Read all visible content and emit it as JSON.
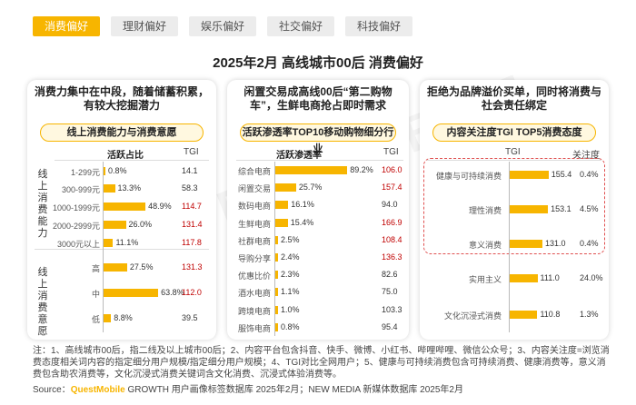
{
  "tabs": [
    {
      "label": "消费偏好",
      "active": true
    },
    {
      "label": "理财偏好",
      "active": false
    },
    {
      "label": "娱乐偏好",
      "active": false
    },
    {
      "label": "社交偏好",
      "active": false
    },
    {
      "label": "科技偏好",
      "active": false
    }
  ],
  "title": "2025年2月 高线城市00后 消费偏好",
  "watermark": "QUESTMOBILE",
  "colors": {
    "accent": "#f7b500",
    "highlight": "#c00000"
  },
  "panel1": {
    "headline": "消费力集中在中段，随着储蓄积累，有较大挖掘潜力",
    "subtitle": "线上消费能力与消费意愿",
    "col_value": "活跃占比",
    "col_tgi": "TGI",
    "group1_label": "线上消费能力",
    "group2_label": "线上消费意愿"
  },
  "panel2": {
    "headline": "闲置交易成高线00后“第二购物车”，生鲜电商抢占即时需求",
    "subtitle": "活跃渗透率TOP10移动购物细分行业",
    "col_value": "活跃渗透率",
    "col_tgi": "TGI"
  },
  "panel3": {
    "headline": "拒绝为品牌溢价买单，同时将消费与社会责任绑定",
    "subtitle": "内容关注度TGI TOP5消费态度",
    "col_tgi": "TGI",
    "col_attention": "关注度"
  },
  "chart_data": [
    {
      "type": "bar",
      "title": "线上消费能力与消费意愿",
      "groups": [
        {
          "name": "线上消费能力",
          "categories": [
            "1-299元",
            "300-999元",
            "1000-1999元",
            "2000-2999元",
            "3000元以上"
          ],
          "values": [
            0.8,
            13.3,
            48.9,
            26.0,
            11.1
          ],
          "value_labels": [
            "0.8%",
            "13.3%",
            "48.9%",
            "26.0%",
            "11.1%"
          ],
          "tgi": [
            14.1,
            58.3,
            114.7,
            131.4,
            117.8
          ],
          "tgi_labels": [
            "14.1",
            "58.3",
            "114.7",
            "131.4",
            "117.8"
          ],
          "tgi_highlight": [
            false,
            false,
            true,
            true,
            true
          ]
        },
        {
          "name": "线上消费意愿",
          "categories": [
            "高",
            "中",
            "低"
          ],
          "values": [
            27.5,
            63.8,
            8.8
          ],
          "value_labels": [
            "27.5%",
            "63.8%",
            "8.8%"
          ],
          "tgi": [
            131.3,
            112.0,
            39.5
          ],
          "tgi_labels": [
            "131.3",
            "112.0",
            "39.5"
          ],
          "tgi_highlight": [
            true,
            true,
            false
          ]
        }
      ],
      "value_unit": "%"
    },
    {
      "type": "bar",
      "title": "活跃渗透率TOP10移动购物细分行业",
      "categories": [
        "综合电商",
        "闲置交易",
        "数码电商",
        "生鲜电商",
        "社群电商",
        "导购分享",
        "优惠比价",
        "酒水电商",
        "跨境电商",
        "服饰电商"
      ],
      "values": [
        89.2,
        25.7,
        16.1,
        15.4,
        2.5,
        2.4,
        2.3,
        1.1,
        1.0,
        0.8
      ],
      "value_labels": [
        "89.2%",
        "25.7%",
        "16.1%",
        "15.4%",
        "2.5%",
        "2.4%",
        "2.3%",
        "1.1%",
        "1.0%",
        "0.8%"
      ],
      "tgi": [
        106.0,
        157.4,
        94.0,
        166.9,
        108.4,
        136.3,
        82.6,
        75.0,
        103.3,
        95.4
      ],
      "tgi_labels": [
        "106.0",
        "157.4",
        "94.0",
        "166.9",
        "108.4",
        "136.3",
        "82.6",
        "75.0",
        "103.3",
        "95.4"
      ],
      "tgi_highlight": [
        true,
        true,
        false,
        true,
        true,
        true,
        false,
        false,
        false,
        false
      ],
      "value_unit": "%"
    },
    {
      "type": "bar",
      "title": "内容关注度TGI TOP5消费态度",
      "categories": [
        "健康与可持续消费",
        "理性消费",
        "意义消费",
        "实用主义",
        "文化沉浸式消费"
      ],
      "tgi": [
        155.4,
        153.1,
        131.0,
        111.0,
        110.8
      ],
      "tgi_labels": [
        "155.4",
        "153.1",
        "131.0",
        "111.0",
        "110.8"
      ],
      "attention": [
        0.4,
        4.5,
        0.4,
        24.0,
        1.3
      ],
      "attention_labels": [
        "0.4%",
        "4.5%",
        "0.4%",
        "24.0%",
        "1.3%"
      ],
      "highlighted_categories": [
        "健康与可持续消费",
        "理性消费",
        "意义消费"
      ]
    }
  ],
  "notes": "注：1、高线城市00后，指二线及以上城市00后；2、内容平台包含抖音、快手、微博、小红书、哔哩哔哩、微信公众号；3、内容关注度=浏览消费态度相关词内容的指定细分用户规模/指定细分用户规模；4、TGI对比全网用户；5、健康与可持续消费包含可持续消费、健康消费等，意义消费包含助农消费等，文化沉浸式消费关键词含文化消费、沉浸式体验消费等。",
  "source": {
    "prefix": "Source：",
    "brand": "QuestMobile",
    "text": " GROWTH 用户画像标签数据库 2025年2月；NEW MEDIA 新媒体数据库 2025年2月"
  }
}
